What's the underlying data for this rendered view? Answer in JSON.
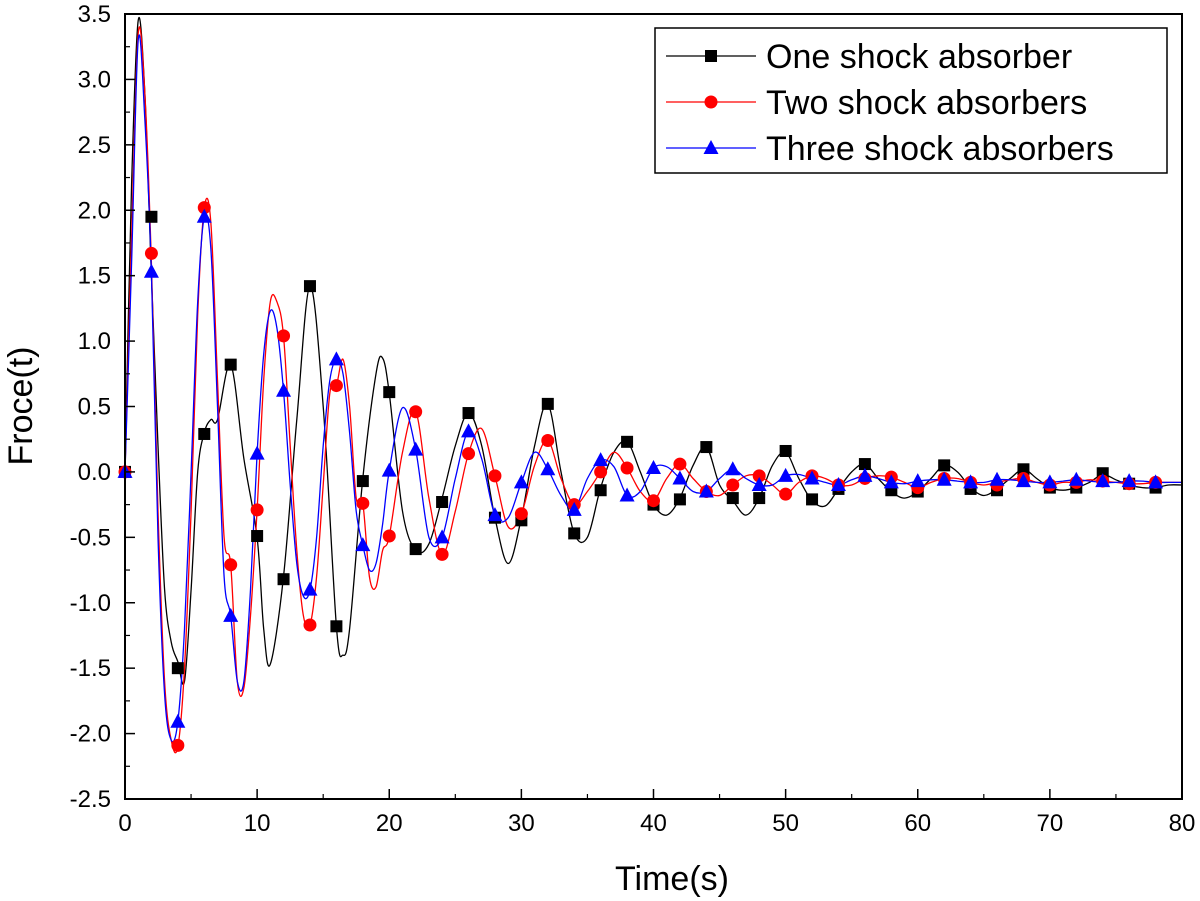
{
  "chart_data": {
    "type": "line",
    "title": "",
    "xlabel": "Time(s)",
    "ylabel": "Froce(t)",
    "xlim": [
      0,
      80
    ],
    "ylim": [
      -2.5,
      3.5
    ],
    "x_ticks": [
      0,
      10,
      20,
      30,
      40,
      50,
      60,
      70,
      80
    ],
    "x_tick_labels": [
      "0",
      "10",
      "20",
      "30",
      "40",
      "50",
      "60",
      "70",
      "80"
    ],
    "y_ticks": [
      -2.5,
      -2.0,
      -1.5,
      -1.0,
      -0.5,
      0.0,
      0.5,
      1.0,
      1.5,
      2.0,
      2.5,
      3.0,
      3.5
    ],
    "y_tick_labels": [
      "-2.5",
      "-2.0",
      "-1.5",
      "-1.0",
      "-0.5",
      "0.0",
      "0.5",
      "1.0",
      "1.5",
      "2.0",
      "2.5",
      "3.0",
      "3.5"
    ],
    "grid": false,
    "legend_position": "top-right",
    "series": [
      {
        "name": "One shock absorber",
        "color": "#000000",
        "marker": "square",
        "line_x": [
          0,
          0.5,
          1,
          1.5,
          2,
          2.5,
          3,
          3.5,
          4,
          4.5,
          5,
          5.5,
          6,
          6.5,
          7,
          8,
          9,
          10,
          10.5,
          11,
          12,
          13,
          14,
          15,
          16,
          16.5,
          17,
          18,
          19,
          19.5,
          20,
          21,
          22,
          23,
          24,
          25,
          26,
          27,
          28,
          29,
          30,
          31,
          32,
          33,
          34,
          35,
          36,
          37,
          38,
          39,
          40,
          41,
          42,
          43,
          44,
          45,
          46,
          47,
          48,
          49,
          50,
          51,
          52,
          53,
          54,
          55,
          56,
          57,
          58,
          59,
          60,
          61,
          62,
          63,
          64,
          65,
          66,
          67,
          68,
          69,
          70,
          71,
          72,
          73,
          74,
          75,
          76,
          77,
          78,
          79,
          80
        ],
        "line_y": [
          0.0,
          2.2,
          3.45,
          2.9,
          1.5,
          0.2,
          -0.9,
          -1.3,
          -1.45,
          -1.6,
          -0.9,
          0.0,
          0.3,
          0.4,
          0.4,
          0.82,
          0.1,
          -0.5,
          -1.2,
          -1.47,
          -0.8,
          0.4,
          1.42,
          0.5,
          -1.18,
          -1.4,
          -1.2,
          -0.05,
          0.75,
          0.87,
          0.6,
          -0.3,
          -0.6,
          -0.55,
          -0.2,
          0.2,
          0.45,
          0.2,
          -0.35,
          -0.7,
          -0.35,
          0.2,
          0.52,
          0.0,
          -0.47,
          -0.5,
          -0.12,
          0.15,
          0.23,
          0.0,
          -0.25,
          -0.33,
          -0.2,
          0.05,
          0.19,
          -0.1,
          -0.22,
          -0.33,
          -0.2,
          0.05,
          0.15,
          -0.05,
          -0.22,
          -0.26,
          -0.13,
          0.0,
          0.06,
          -0.05,
          -0.15,
          -0.2,
          -0.15,
          -0.05,
          0.05,
          0.0,
          -0.12,
          -0.18,
          -0.13,
          -0.05,
          0.02,
          -0.05,
          -0.12,
          -0.14,
          -0.12,
          -0.08,
          -0.02,
          -0.06,
          -0.1,
          -0.12,
          -0.12,
          -0.1,
          -0.1
        ],
        "markers_x": [
          0,
          2,
          4,
          6,
          8,
          10,
          12,
          14,
          16,
          18,
          20,
          22,
          24,
          26,
          28,
          30,
          32,
          34,
          36,
          38,
          40,
          42,
          44,
          46,
          48,
          50,
          52,
          54,
          56,
          58,
          60,
          62,
          64,
          66,
          68,
          70,
          72,
          74,
          76,
          78
        ],
        "markers_y": [
          0.0,
          1.95,
          -1.5,
          0.29,
          0.82,
          -0.49,
          -0.82,
          1.42,
          -1.18,
          -0.07,
          0.61,
          -0.59,
          -0.23,
          0.45,
          -0.35,
          -0.37,
          0.52,
          -0.47,
          -0.14,
          0.23,
          -0.25,
          -0.21,
          0.19,
          -0.2,
          -0.2,
          0.16,
          -0.21,
          -0.13,
          0.06,
          -0.14,
          -0.15,
          0.05,
          -0.13,
          -0.14,
          0.02,
          -0.12,
          -0.12,
          -0.01,
          -0.09,
          -0.12
        ]
      },
      {
        "name": "Two shock absorbers",
        "color": "#ff0000",
        "marker": "circle",
        "line_x": [
          0,
          0.5,
          1,
          1.5,
          2,
          2.5,
          3,
          3.5,
          4,
          4.5,
          5,
          5.5,
          6,
          6.5,
          7,
          7.5,
          8,
          8.5,
          9,
          9.5,
          10,
          10.5,
          11,
          11.5,
          12,
          12.5,
          13,
          13.5,
          14,
          14.5,
          15,
          15.5,
          16,
          16.5,
          17,
          17.5,
          18,
          18.5,
          19,
          19.5,
          20,
          21,
          22,
          23,
          24,
          25,
          26,
          27,
          28,
          29,
          30,
          31,
          32,
          33,
          34,
          35,
          36,
          37,
          38,
          39,
          40,
          41,
          42,
          43,
          44,
          45,
          46,
          47,
          48,
          49,
          50,
          51,
          52,
          53,
          54,
          55,
          56,
          57,
          58,
          59,
          60,
          61,
          62,
          63,
          64,
          65,
          66,
          67,
          68,
          69,
          70,
          71,
          72,
          73,
          74,
          75,
          76,
          77,
          78,
          79,
          80
        ],
        "line_y": [
          0.0,
          1.8,
          3.35,
          2.9,
          1.6,
          -0.3,
          -1.6,
          -2.05,
          -2.1,
          -1.5,
          -0.3,
          1.2,
          2.02,
          1.9,
          0.7,
          -0.5,
          -0.71,
          -1.6,
          -1.65,
          -1.1,
          -0.29,
          0.7,
          1.3,
          1.3,
          1.04,
          0.2,
          -0.6,
          -1.1,
          -1.17,
          -0.8,
          -0.1,
          0.6,
          0.66,
          0.86,
          0.5,
          -0.2,
          -0.24,
          -0.8,
          -0.88,
          -0.6,
          -0.49,
          0.15,
          0.46,
          -0.2,
          -0.63,
          -0.3,
          0.14,
          0.33,
          -0.03,
          -0.42,
          -0.32,
          0.05,
          0.24,
          -0.05,
          -0.25,
          -0.15,
          0.0,
          0.15,
          0.03,
          -0.15,
          -0.22,
          -0.05,
          0.06,
          -0.05,
          -0.15,
          -0.18,
          -0.1,
          -0.03,
          -0.03,
          -0.1,
          -0.17,
          -0.08,
          -0.03,
          -0.05,
          -0.1,
          -0.1,
          -0.05,
          -0.03,
          -0.04,
          -0.08,
          -0.12,
          -0.08,
          -0.05,
          -0.05,
          -0.08,
          -0.1,
          -0.08,
          -0.06,
          -0.05,
          -0.08,
          -0.1,
          -0.08,
          -0.08,
          -0.06,
          -0.07,
          -0.08,
          -0.09,
          -0.09,
          -0.08,
          -0.08,
          -0.08
        ],
        "markers_x": [
          0,
          2,
          4,
          6,
          8,
          10,
          12,
          14,
          16,
          18,
          20,
          22,
          24,
          26,
          28,
          30,
          32,
          34,
          36,
          38,
          40,
          42,
          44,
          46,
          48,
          50,
          52,
          54,
          56,
          58,
          60,
          62,
          64,
          66,
          68,
          70,
          72,
          74,
          76,
          78
        ],
        "markers_y": [
          0.0,
          1.67,
          -2.09,
          2.02,
          -0.71,
          -0.29,
          1.04,
          -1.17,
          0.66,
          -0.24,
          -0.49,
          0.46,
          -0.63,
          0.14,
          -0.03,
          -0.32,
          0.24,
          -0.25,
          0.0,
          0.03,
          -0.22,
          0.06,
          -0.15,
          -0.1,
          -0.03,
          -0.17,
          -0.03,
          -0.1,
          -0.05,
          -0.04,
          -0.12,
          -0.05,
          -0.08,
          -0.1,
          -0.05,
          -0.1,
          -0.08,
          -0.07,
          -0.09,
          -0.08
        ]
      },
      {
        "name": "Three shock absorbers",
        "color": "#0000ff",
        "marker": "triangle",
        "line_x": [
          0,
          0.5,
          1,
          1.5,
          2,
          2.5,
          3,
          3.5,
          4,
          4.5,
          5,
          5.5,
          6,
          6.5,
          7,
          7.5,
          8,
          8.5,
          9,
          9.5,
          10,
          10.5,
          11,
          11.5,
          12,
          12.5,
          13,
          13.5,
          14,
          14.5,
          15,
          15.5,
          16,
          16.5,
          17,
          17.5,
          18,
          18.5,
          19,
          19.5,
          20,
          21,
          22,
          23,
          24,
          25,
          26,
          27,
          28,
          29,
          30,
          31,
          32,
          33,
          34,
          35,
          36,
          37,
          38,
          39,
          40,
          41,
          42,
          43,
          44,
          45,
          46,
          47,
          48,
          49,
          50,
          51,
          52,
          53,
          54,
          55,
          56,
          57,
          58,
          59,
          60,
          61,
          62,
          63,
          64,
          65,
          66,
          67,
          68,
          69,
          70,
          71,
          72,
          73,
          74,
          75,
          76,
          77,
          78,
          79,
          80
        ],
        "line_y": [
          0.0,
          1.6,
          3.3,
          2.7,
          1.53,
          -0.5,
          -1.7,
          -2.05,
          -1.91,
          -1.2,
          0.0,
          1.3,
          1.95,
          1.7,
          0.5,
          -0.8,
          -1.1,
          -1.6,
          -1.6,
          -0.9,
          0.14,
          0.9,
          1.23,
          1.1,
          0.62,
          -0.1,
          -0.7,
          -0.95,
          -0.9,
          -0.5,
          0.2,
          0.7,
          0.86,
          0.75,
          0.3,
          -0.3,
          -0.56,
          -0.75,
          -0.7,
          -0.4,
          0.01,
          0.49,
          0.17,
          -0.5,
          -0.5,
          -0.05,
          0.31,
          0.1,
          -0.33,
          -0.35,
          -0.08,
          0.15,
          0.02,
          -0.18,
          -0.29,
          -0.05,
          0.09,
          0.04,
          -0.18,
          -0.15,
          0.03,
          0.04,
          -0.05,
          -0.15,
          -0.15,
          -0.05,
          0.02,
          -0.05,
          -0.1,
          -0.1,
          -0.03,
          -0.02,
          -0.05,
          -0.08,
          -0.1,
          -0.06,
          -0.03,
          -0.05,
          -0.08,
          -0.09,
          -0.07,
          -0.06,
          -0.06,
          -0.07,
          -0.08,
          -0.08,
          -0.06,
          -0.06,
          -0.07,
          -0.08,
          -0.08,
          -0.07,
          -0.06,
          -0.07,
          -0.08,
          -0.08,
          -0.07,
          -0.07,
          -0.08,
          -0.08,
          -0.08
        ],
        "markers_x": [
          0,
          2,
          4,
          6,
          8,
          10,
          12,
          14,
          16,
          18,
          20,
          22,
          24,
          26,
          28,
          30,
          32,
          34,
          36,
          38,
          40,
          42,
          44,
          46,
          48,
          50,
          52,
          54,
          56,
          58,
          60,
          62,
          64,
          66,
          68,
          70,
          72,
          74,
          76,
          78
        ],
        "markers_y": [
          0.0,
          1.53,
          -1.91,
          1.95,
          -1.1,
          0.14,
          0.62,
          -0.9,
          0.86,
          -0.56,
          0.01,
          0.17,
          -0.5,
          0.31,
          -0.33,
          -0.08,
          0.02,
          -0.29,
          0.09,
          -0.18,
          0.03,
          -0.05,
          -0.15,
          0.02,
          -0.1,
          -0.03,
          -0.05,
          -0.1,
          -0.03,
          -0.08,
          -0.07,
          -0.06,
          -0.08,
          -0.06,
          -0.07,
          -0.08,
          -0.06,
          -0.07,
          -0.07,
          -0.08
        ]
      }
    ]
  }
}
